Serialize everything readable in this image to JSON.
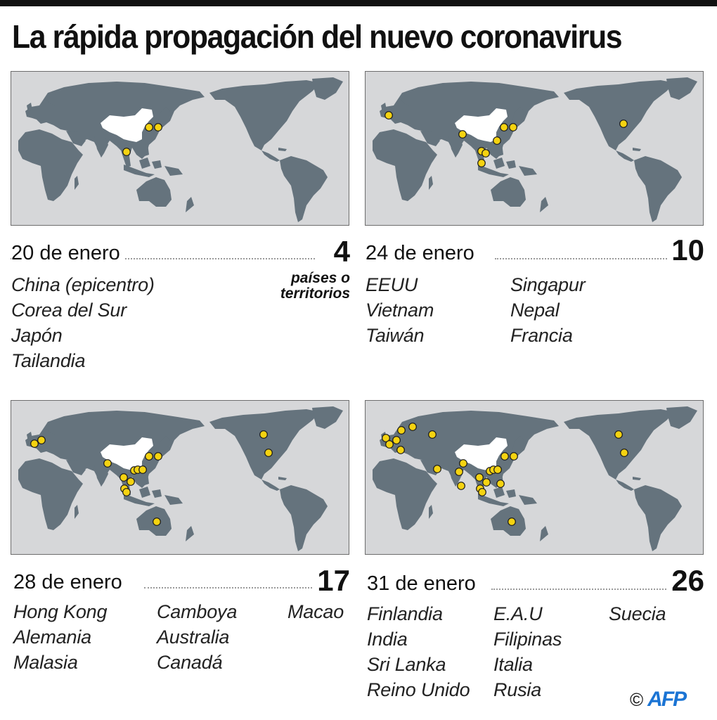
{
  "title": "La rápida propagación del nuevo coronavirus",
  "colors": {
    "ocean": "#d6d7d9",
    "land": "#65737d",
    "epicenter": "#ffffff",
    "dot_fill": "#f5d311",
    "dot_stroke": "#1a1a1a",
    "credit_blue": "#1b74d4"
  },
  "units_label_line1": "países o",
  "units_label_line2": "territorios",
  "panels": [
    {
      "date": "20 de enero",
      "count": "4",
      "columns": [
        [
          "China (epicentro)",
          "Corea del Sur",
          "Japón",
          "Tailandia"
        ]
      ],
      "dots": [
        [
          196,
          79
        ],
        [
          209,
          79
        ],
        [
          164,
          114
        ]
      ]
    },
    {
      "date": "24 de enero",
      "count": "10",
      "columns": [
        [
          "EEUU",
          "Vietnam",
          "Taiwán"
        ],
        [
          "Singapur",
          "Nepal",
          "Francia"
        ]
      ],
      "dots": [
        [
          33,
          62
        ],
        [
          138,
          89
        ],
        [
          197,
          79
        ],
        [
          210,
          79
        ],
        [
          187,
          98
        ],
        [
          165,
          113
        ],
        [
          171,
          116
        ],
        [
          165,
          130
        ],
        [
          367,
          74
        ]
      ]
    },
    {
      "date": "28 de enero",
      "count": "17",
      "columns": [
        [
          "Hong Kong",
          "Alemania",
          "Malasia"
        ],
        [
          "Camboya",
          "Australia",
          "Canadá"
        ],
        [
          "Macao"
        ]
      ],
      "dots": [
        [
          33,
          61
        ],
        [
          43,
          56
        ],
        [
          137,
          89
        ],
        [
          196,
          79
        ],
        [
          209,
          79
        ],
        [
          175,
          99
        ],
        [
          180,
          98
        ],
        [
          187,
          98
        ],
        [
          160,
          109
        ],
        [
          170,
          115
        ],
        [
          161,
          125
        ],
        [
          164,
          130
        ],
        [
          207,
          172
        ],
        [
          359,
          48
        ],
        [
          366,
          74
        ]
      ]
    },
    {
      "date": "31 de enero",
      "count": "26",
      "columns": [
        [
          "Finlandia",
          "India",
          "Sri Lanka",
          "Reino Unido"
        ],
        [
          "E.A.U",
          "Filipinas",
          "Italia",
          "Rusia"
        ],
        [
          "Suecia"
        ]
      ],
      "dots": [
        [
          29,
          53
        ],
        [
          34,
          62
        ],
        [
          44,
          56
        ],
        [
          51,
          42
        ],
        [
          67,
          37
        ],
        [
          50,
          70
        ],
        [
          95,
          48
        ],
        [
          102,
          97
        ],
        [
          139,
          89
        ],
        [
          133,
          101
        ],
        [
          136,
          121
        ],
        [
          198,
          79
        ],
        [
          211,
          79
        ],
        [
          177,
          100
        ],
        [
          182,
          98
        ],
        [
          188,
          98
        ],
        [
          162,
          109
        ],
        [
          172,
          116
        ],
        [
          163,
          125
        ],
        [
          166,
          130
        ],
        [
          192,
          118
        ],
        [
          208,
          172
        ],
        [
          360,
          48
        ],
        [
          368,
          74
        ]
      ]
    }
  ],
  "credit": {
    "copyright": "©",
    "agency": "AFP"
  },
  "chart_data": {
    "type": "map",
    "title": "La rápida propagación del nuevo coronavirus",
    "series": [
      {
        "date": "20 de enero",
        "countries_or_territories": 4,
        "new": [
          "China (epicentro)",
          "Corea del Sur",
          "Japón",
          "Tailandia"
        ]
      },
      {
        "date": "24 de enero",
        "countries_or_territories": 10,
        "new": [
          "EEUU",
          "Vietnam",
          "Taiwán",
          "Singapur",
          "Nepal",
          "Francia"
        ]
      },
      {
        "date": "28 de enero",
        "countries_or_territories": 17,
        "new": [
          "Hong Kong",
          "Alemania",
          "Malasia",
          "Camboya",
          "Australia",
          "Canadá",
          "Macao"
        ]
      },
      {
        "date": "31 de enero",
        "countries_or_territories": 26,
        "new": [
          "Finlandia",
          "India",
          "Sri Lanka",
          "Reino Unido",
          "E.A.U",
          "Filipinas",
          "Italia",
          "Rusia",
          "Suecia"
        ]
      }
    ],
    "units": "países o territorios"
  }
}
